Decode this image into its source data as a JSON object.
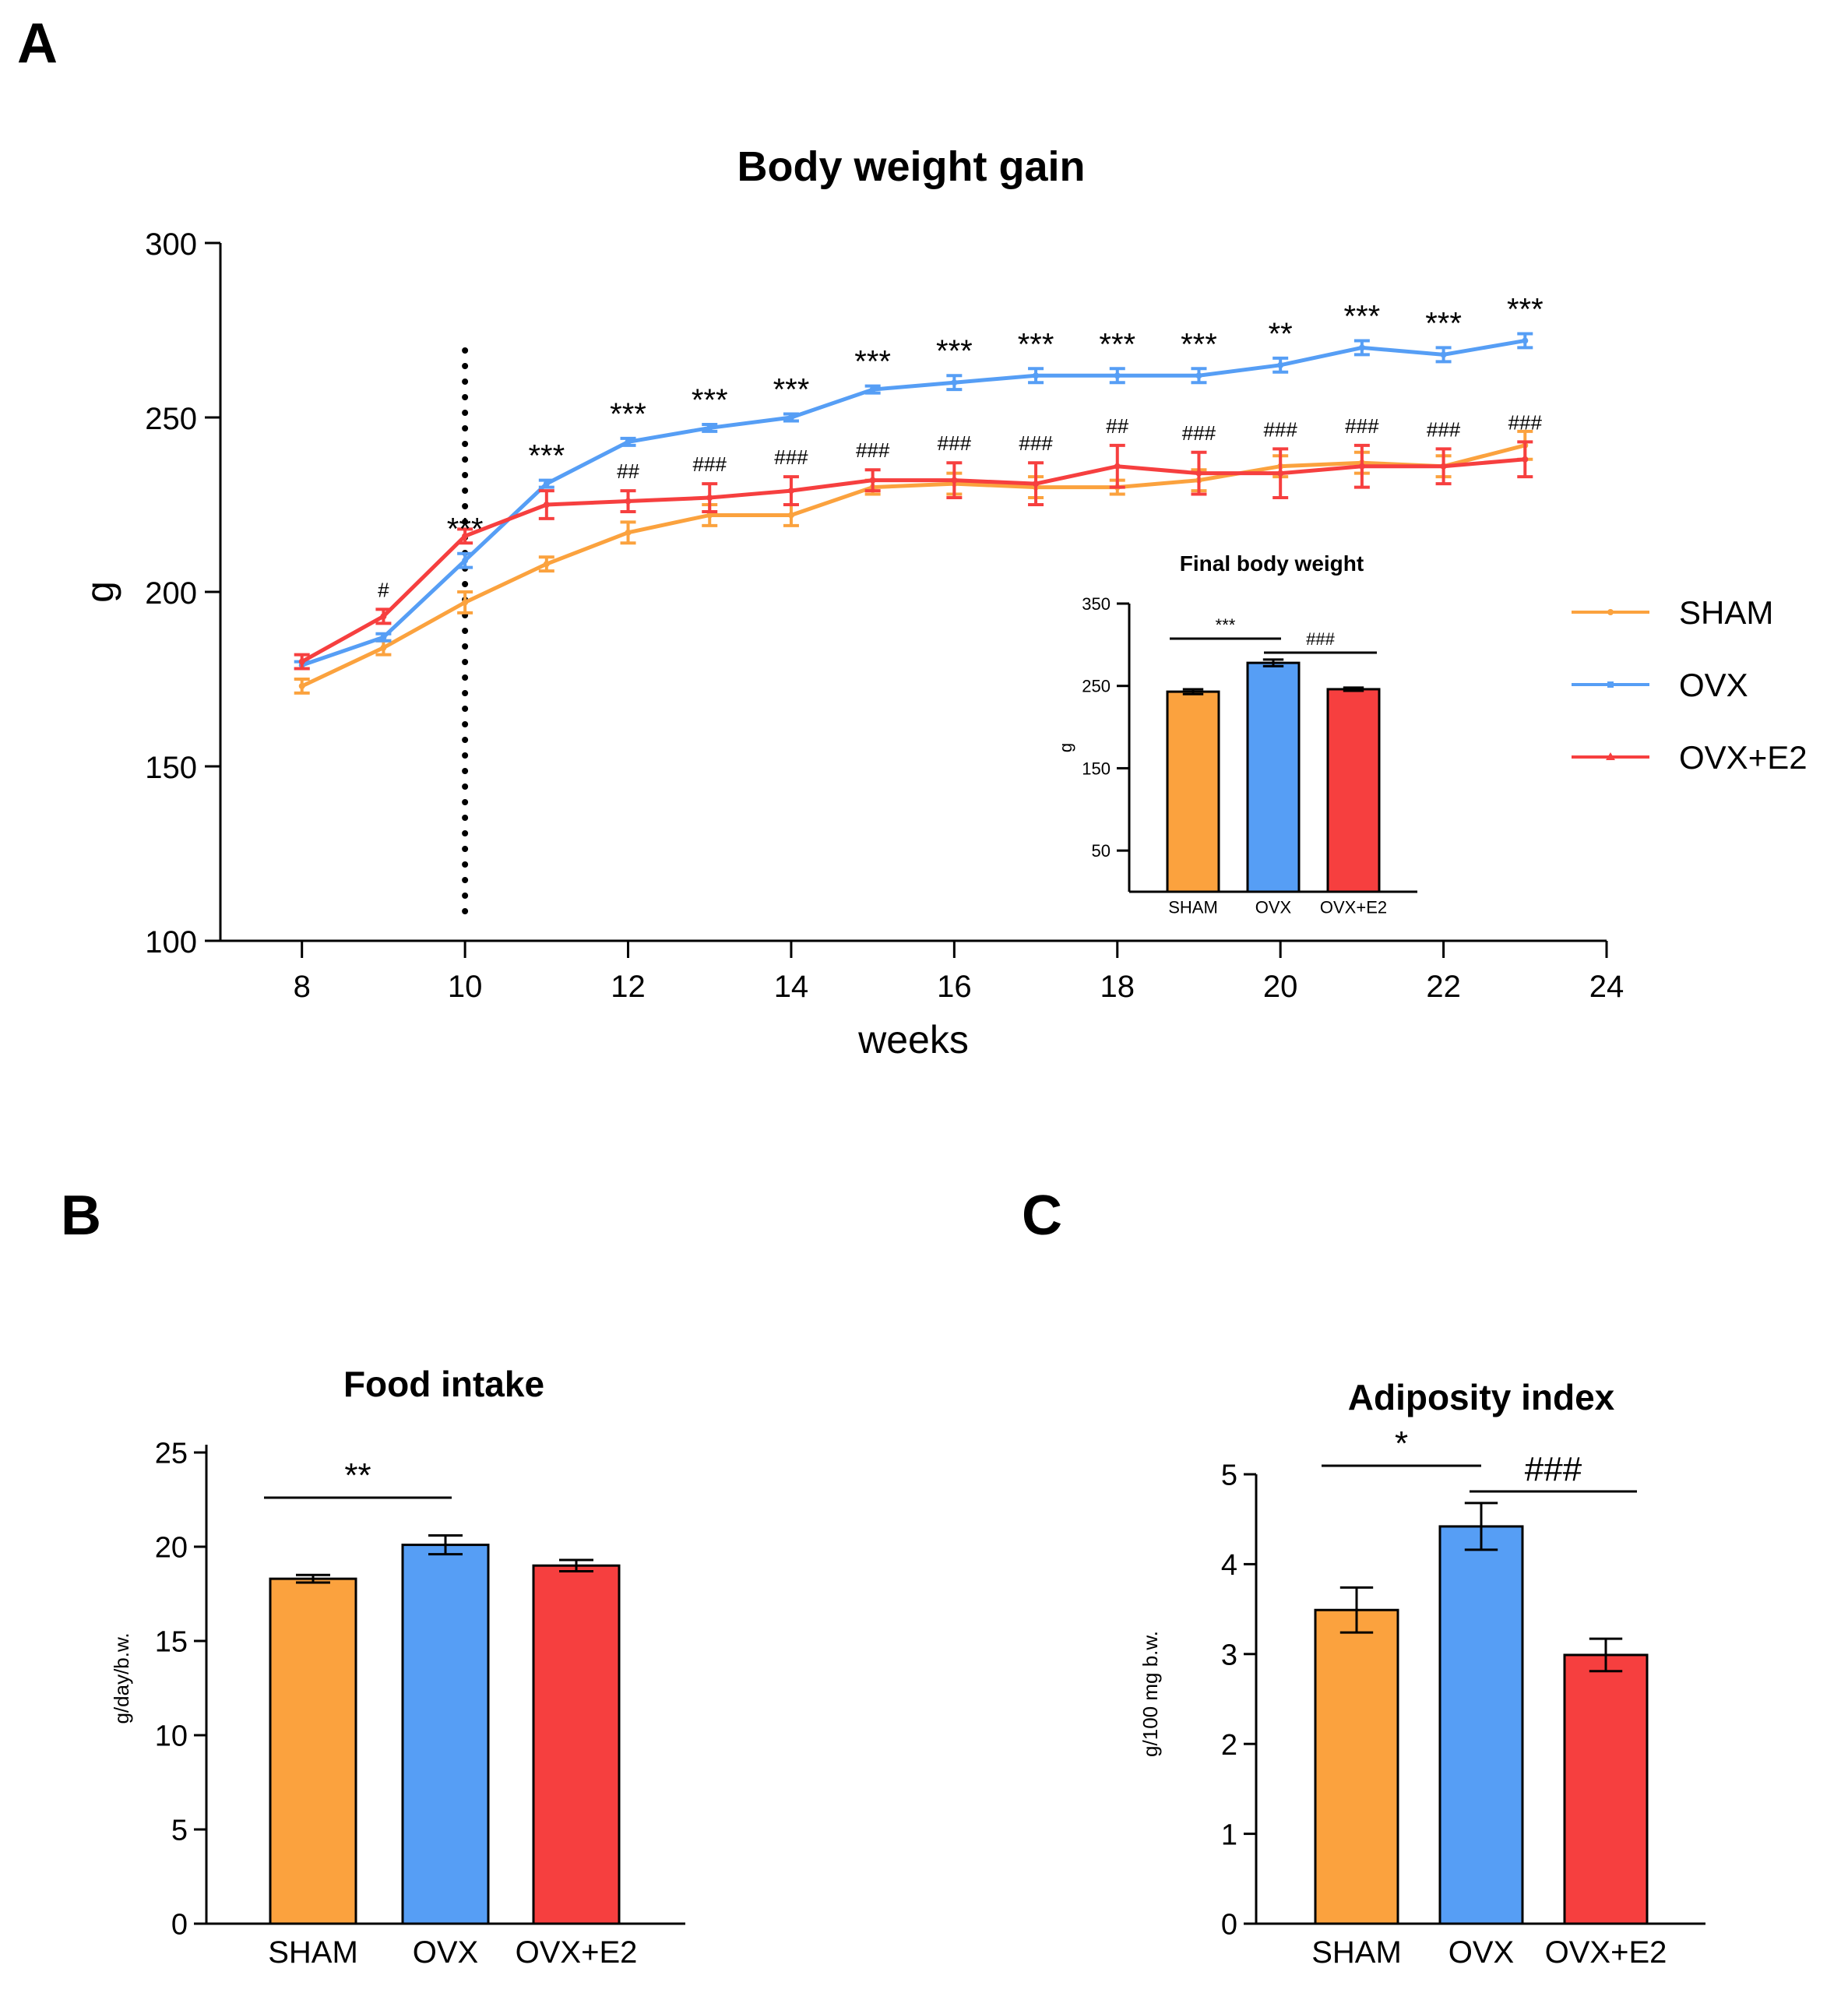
{
  "colors": {
    "sham": "#FBA23E",
    "ovx": "#569EF5",
    "e2": "#F63F3F",
    "axis": "#000000"
  },
  "panels": {
    "a": "A",
    "b": "B",
    "c": "C"
  },
  "chart_data": [
    {
      "id": "A",
      "type": "line",
      "title": "Body weight gain",
      "xlabel": "weeks",
      "ylabel": "g",
      "xlim": [
        7,
        24
      ],
      "ylim": [
        100,
        300
      ],
      "xticks": [
        "8",
        "10",
        "12",
        "14",
        "16",
        "18",
        "20",
        "22",
        "24"
      ],
      "yticks": [
        "100",
        "150",
        "200",
        "250",
        "300"
      ],
      "x": [
        8,
        9,
        10,
        11,
        12,
        13,
        14,
        15,
        16,
        17,
        18,
        19,
        20,
        21,
        22,
        23
      ],
      "intervention_line_x": 10,
      "legend": [
        "SHAM",
        "OVX",
        "OVX+E2"
      ],
      "legend_position": "right",
      "series": [
        {
          "name": "SHAM",
          "values": [
            173,
            184,
            197,
            208,
            217,
            222,
            222,
            230,
            231,
            230,
            230,
            232,
            236,
            237,
            236,
            242
          ],
          "errors": [
            2,
            2,
            3,
            2,
            3,
            3,
            3,
            2,
            3,
            3,
            2,
            3,
            3,
            3,
            3,
            4
          ]
        },
        {
          "name": "OVX",
          "values": [
            179,
            187,
            209,
            231,
            243,
            247,
            250,
            258,
            260,
            262,
            262,
            262,
            265,
            270,
            268,
            272
          ],
          "errors": [
            1,
            1,
            2,
            1,
            1,
            1,
            1,
            1,
            2,
            2,
            2,
            2,
            2,
            2,
            2,
            2
          ]
        },
        {
          "name": "OVX+E2",
          "values": [
            180,
            193,
            216,
            225,
            226,
            227,
            229,
            232,
            232,
            231,
            236,
            234,
            234,
            236,
            236,
            238
          ],
          "errors": [
            2,
            2,
            2,
            4,
            3,
            4,
            4,
            3,
            5,
            6,
            6,
            6,
            7,
            6,
            5,
            5
          ]
        }
      ],
      "annotations_ovx": [
        "",
        "",
        "***",
        "***",
        "***",
        "***",
        "***",
        "***",
        "***",
        "***",
        "***",
        "***",
        "**",
        "***",
        "***",
        "***"
      ],
      "annotations_e2": [
        "",
        "#",
        "",
        "",
        "##",
        "###",
        "###",
        "###",
        "###",
        "###",
        "##",
        "###",
        "###",
        "###",
        "###",
        "###"
      ],
      "inset": {
        "type": "bar",
        "title": "Final body weight",
        "ylabel": "g",
        "categories": [
          "SHAM",
          "OVX",
          "OVX+E2"
        ],
        "values": [
          243,
          278,
          246
        ],
        "errors": [
          3,
          4,
          2
        ],
        "ylim": [
          0,
          350
        ],
        "yticks": [
          "50",
          "150",
          "250",
          "350"
        ],
        "significance": [
          {
            "from": 0,
            "to": 1,
            "label": "***"
          },
          {
            "from": 1,
            "to": 2,
            "label": "###"
          }
        ]
      }
    },
    {
      "id": "B",
      "type": "bar",
      "title": "Food intake",
      "ylabel": "g/day/b.w.",
      "categories": [
        "SHAM",
        "OVX",
        "OVX+E2"
      ],
      "values": [
        18.3,
        20.1,
        19.0
      ],
      "errors": [
        0.2,
        0.5,
        0.3
      ],
      "ylim": [
        0,
        25
      ],
      "yticks": [
        "0",
        "5",
        "10",
        "15",
        "20",
        "25"
      ],
      "significance": [
        {
          "from": 0,
          "to": 1,
          "label": "**"
        }
      ]
    },
    {
      "id": "C",
      "type": "bar",
      "title": "Adiposity index",
      "ylabel": "g/100 mg b.w.",
      "categories": [
        "SHAM",
        "OVX",
        "OVX+E2"
      ],
      "values": [
        3.49,
        4.42,
        2.99
      ],
      "errors": [
        0.25,
        0.26,
        0.18
      ],
      "ylim": [
        0,
        5
      ],
      "yticks": [
        "0",
        "1",
        "2",
        "3",
        "4",
        "5"
      ],
      "significance": [
        {
          "from": 0,
          "to": 1,
          "label": "*"
        },
        {
          "from": 1,
          "to": 2,
          "label": "###"
        }
      ]
    }
  ]
}
